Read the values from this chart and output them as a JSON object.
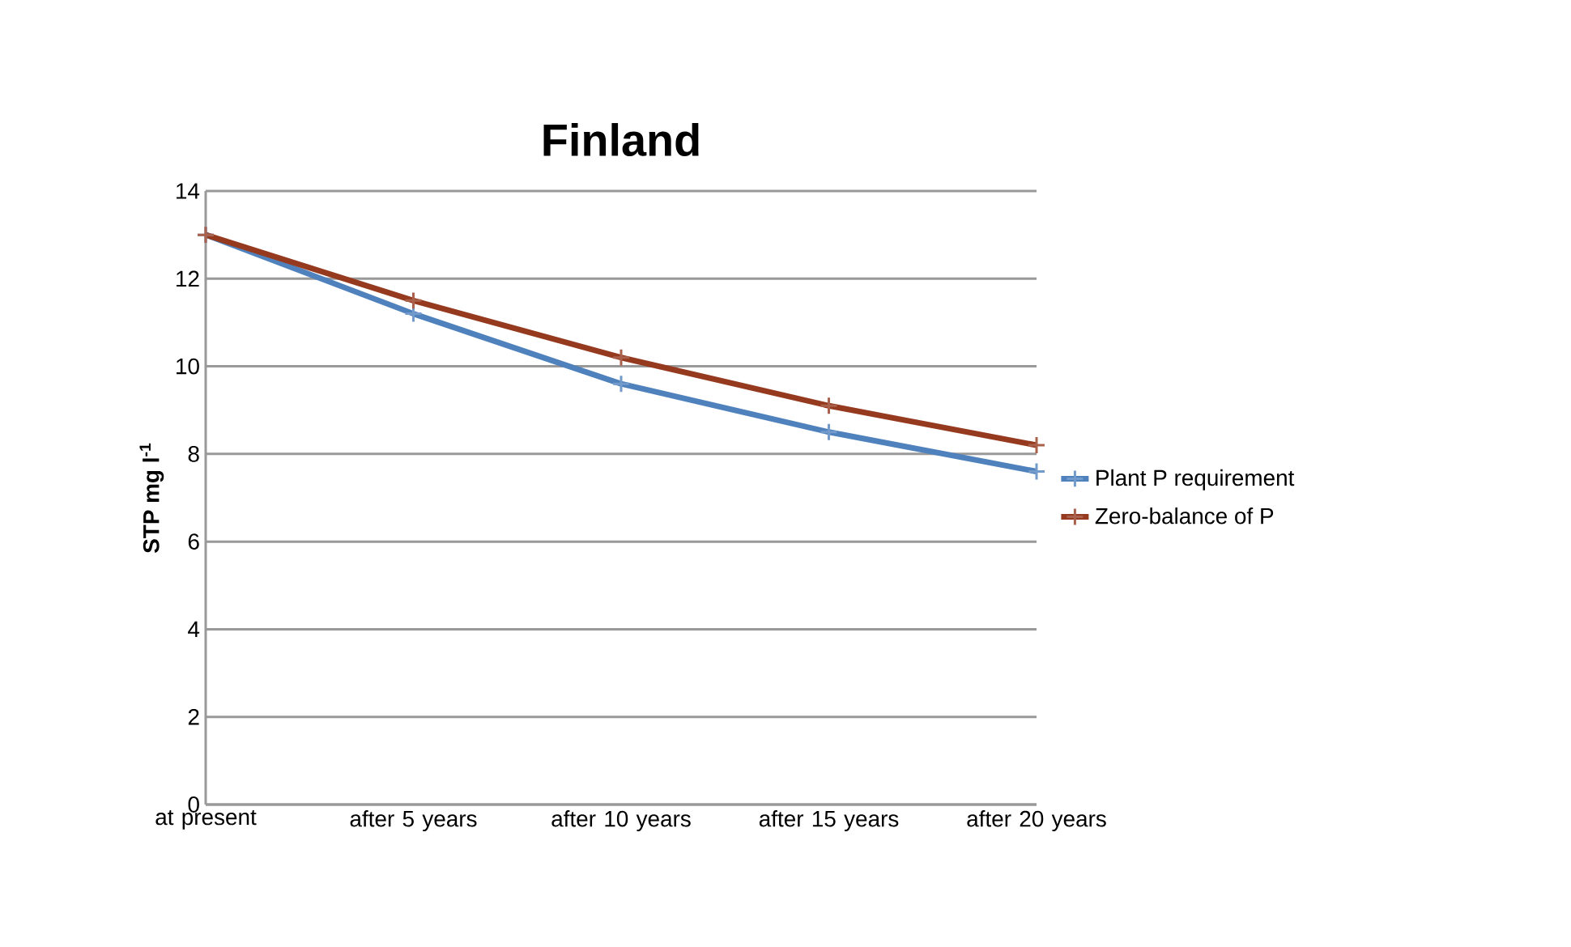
{
  "chart_data": {
    "type": "line",
    "title": "Finland",
    "ylabel": "STP mg l$^{-1}$",
    "categories": [
      "at present",
      "after 5 years",
      "after 10 years",
      "after 15 years",
      "after 20 years"
    ],
    "series": [
      {
        "name": "Plant P requirement",
        "color": "#4f81bd",
        "values": [
          13,
          11.2,
          9.6,
          8.5,
          7.6
        ]
      },
      {
        "name": "Zero-balance of P",
        "color": "#953a1f",
        "values": [
          13,
          11.5,
          10.2,
          9.1,
          8.2
        ]
      }
    ],
    "ylim": [
      0,
      14
    ],
    "yticks": [
      0,
      2,
      4,
      6,
      8,
      10,
      12,
      14
    ],
    "grid": "y",
    "legend": "right",
    "marker": "cross",
    "line_style": "solid"
  }
}
